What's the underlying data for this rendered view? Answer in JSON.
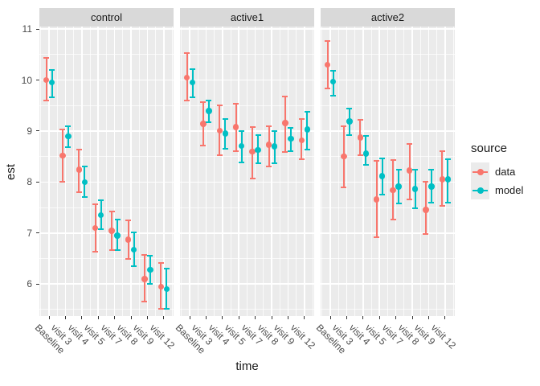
{
  "theme": {
    "panel_bg": "#EBEBEB",
    "strip_bg": "#D9D9D9",
    "grid_major": "#FFFFFF",
    "grid_minor": "rgba(255,255,255,0.75)",
    "axis_text": "#4D4D4D",
    "title_text": "#1A1A1A",
    "tick_mark": "#333333",
    "legend_key_bg": "#EBEBEB"
  },
  "chart_data": {
    "type": "pointrange-faceted",
    "title": "",
    "xlabel": "time",
    "ylabel": "est",
    "grid": true,
    "legend_position": "right",
    "yticks": [
      6,
      7,
      8,
      9,
      10,
      11
    ],
    "ylim": [
      5.37,
      11.05
    ],
    "categories": [
      "Baseline",
      "visit 3",
      "visit 4",
      "visit 5",
      "visit 7",
      "visit 8",
      "visit 9",
      "visit 12"
    ],
    "legend": {
      "title": "source",
      "series": [
        {
          "name": "data",
          "color": "#F8766D"
        },
        {
          "name": "model",
          "color": "#00BFC4"
        }
      ]
    },
    "facets": [
      {
        "label": "control",
        "series": {
          "data": {
            "est": [
              10.0,
              8.52,
              8.24,
              7.1,
              7.04,
              6.87,
              6.1,
              5.95
            ],
            "lo": [
              9.6,
              8.0,
              7.8,
              6.64,
              6.66,
              6.49,
              5.65,
              5.52
            ],
            "hi": [
              10.44,
              9.03,
              8.64,
              7.57,
              7.42,
              7.25,
              6.57,
              6.42
            ]
          },
          "model": {
            "est": [
              9.95,
              8.9,
              8.0,
              7.35,
              6.95,
              6.67,
              6.28,
              5.9
            ],
            "lo": [
              9.66,
              8.68,
              7.71,
              7.08,
              6.66,
              6.35,
              6.01,
              5.51
            ],
            "hi": [
              10.2,
              9.1,
              8.3,
              7.64,
              7.26,
              7.01,
              6.56,
              6.3
            ]
          }
        }
      },
      {
        "label": "active1",
        "series": {
          "data": {
            "est": [
              10.05,
              9.14,
              9.01,
              9.08,
              8.6,
              8.73,
              9.16,
              8.82
            ],
            "lo": [
              9.6,
              8.72,
              8.53,
              8.6,
              8.07,
              8.31,
              8.59,
              8.44
            ],
            "hi": [
              10.53,
              9.56,
              9.51,
              9.53,
              9.08,
              9.1,
              9.68,
              9.23
            ]
          },
          "model": {
            "est": [
              9.95,
              9.39,
              8.95,
              8.71,
              8.63,
              8.7,
              8.85,
              9.03
            ],
            "lo": [
              9.66,
              9.18,
              8.66,
              8.39,
              8.37,
              8.37,
              8.61,
              8.64
            ],
            "hi": [
              10.21,
              9.6,
              9.23,
              9.0,
              8.92,
              9.0,
              9.07,
              9.38
            ]
          }
        }
      },
      {
        "label": "active2",
        "series": {
          "data": {
            "est": [
              10.3,
              8.5,
              8.87,
              7.66,
              7.84,
              8.23,
              7.45,
              8.05
            ],
            "lo": [
              9.83,
              7.9,
              8.53,
              6.92,
              7.27,
              7.66,
              6.98,
              7.54
            ],
            "hi": [
              10.76,
              9.09,
              9.22,
              8.42,
              8.43,
              8.74,
              8.0,
              8.6
            ]
          },
          "model": {
            "est": [
              9.97,
              9.19,
              8.56,
              8.12,
              7.91,
              7.86,
              7.91,
              8.05
            ],
            "lo": [
              9.7,
              8.92,
              8.33,
              7.75,
              7.58,
              7.48,
              7.59,
              7.59
            ],
            "hi": [
              10.18,
              9.44,
              8.9,
              8.46,
              8.25,
              8.24,
              8.25,
              8.44
            ]
          }
        }
      }
    ]
  }
}
